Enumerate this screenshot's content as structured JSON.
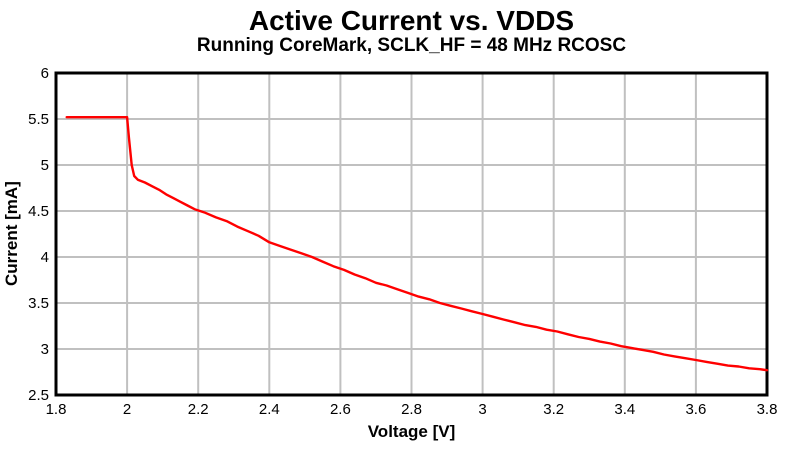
{
  "chart_data": {
    "type": "line",
    "title": "Active Current vs. VDDS",
    "subtitle": "Running CoreMark, SCLK_HF = 48 MHz RCOSC",
    "xlabel": "Voltage [V]",
    "ylabel": "Current [mA]",
    "xlim": [
      1.8,
      3.8
    ],
    "ylim": [
      2.5,
      6
    ],
    "grid": true,
    "legend": "none",
    "background_color": "#ffffff",
    "line_color": "#ff0000",
    "grid_color": "#c0c0c0",
    "border_color": "#000000",
    "text_color": "#000000",
    "xticks": [
      {
        "value": 1.8,
        "label": "1.8"
      },
      {
        "value": 2.0,
        "label": "2"
      },
      {
        "value": 2.2,
        "label": "2.2"
      },
      {
        "value": 2.4,
        "label": "2.4"
      },
      {
        "value": 2.6,
        "label": "2.6"
      },
      {
        "value": 2.8,
        "label": "2.8"
      },
      {
        "value": 3.0,
        "label": "3"
      },
      {
        "value": 3.2,
        "label": "3.2"
      },
      {
        "value": 3.4,
        "label": "3.4"
      },
      {
        "value": 3.6,
        "label": "3.6"
      },
      {
        "value": 3.8,
        "label": "3.8"
      }
    ],
    "yticks": [
      {
        "value": 2.5,
        "label": "2.5"
      },
      {
        "value": 3.0,
        "label": "3"
      },
      {
        "value": 3.5,
        "label": "3.5"
      },
      {
        "value": 4.0,
        "label": "4"
      },
      {
        "value": 4.5,
        "label": "4.5"
      },
      {
        "value": 5.0,
        "label": "5"
      },
      {
        "value": 5.5,
        "label": "5.5"
      },
      {
        "value": 6.0,
        "label": "6"
      }
    ],
    "series": [
      {
        "name": "Active current",
        "points": [
          [
            1.83,
            5.52
          ],
          [
            1.86,
            5.52
          ],
          [
            1.9,
            5.52
          ],
          [
            1.93,
            5.52
          ],
          [
            1.96,
            5.52
          ],
          [
            2.0,
            5.52
          ],
          [
            2.005,
            5.3
          ],
          [
            2.013,
            5.0
          ],
          [
            2.02,
            4.88
          ],
          [
            2.03,
            4.84
          ],
          [
            2.05,
            4.81
          ],
          [
            2.07,
            4.77
          ],
          [
            2.09,
            4.73
          ],
          [
            2.11,
            4.68
          ],
          [
            2.13,
            4.64
          ],
          [
            2.15,
            4.6
          ],
          [
            2.17,
            4.56
          ],
          [
            2.19,
            4.52
          ],
          [
            2.22,
            4.48
          ],
          [
            2.25,
            4.43
          ],
          [
            2.28,
            4.39
          ],
          [
            2.31,
            4.33
          ],
          [
            2.34,
            4.28
          ],
          [
            2.37,
            4.23
          ],
          [
            2.4,
            4.16
          ],
          [
            2.43,
            4.12
          ],
          [
            2.46,
            4.08
          ],
          [
            2.49,
            4.04
          ],
          [
            2.52,
            4.0
          ],
          [
            2.55,
            3.95
          ],
          [
            2.58,
            3.9
          ],
          [
            2.61,
            3.86
          ],
          [
            2.64,
            3.81
          ],
          [
            2.67,
            3.77
          ],
          [
            2.7,
            3.72
          ],
          [
            2.73,
            3.69
          ],
          [
            2.76,
            3.65
          ],
          [
            2.79,
            3.61
          ],
          [
            2.82,
            3.57
          ],
          [
            2.85,
            3.54
          ],
          [
            2.88,
            3.5
          ],
          [
            2.91,
            3.47
          ],
          [
            2.94,
            3.44
          ],
          [
            2.97,
            3.41
          ],
          [
            3.0,
            3.38
          ],
          [
            3.03,
            3.35
          ],
          [
            3.06,
            3.32
          ],
          [
            3.09,
            3.29
          ],
          [
            3.12,
            3.26
          ],
          [
            3.15,
            3.24
          ],
          [
            3.18,
            3.21
          ],
          [
            3.21,
            3.19
          ],
          [
            3.24,
            3.16
          ],
          [
            3.27,
            3.13
          ],
          [
            3.3,
            3.11
          ],
          [
            3.33,
            3.08
          ],
          [
            3.36,
            3.06
          ],
          [
            3.39,
            3.03
          ],
          [
            3.42,
            3.01
          ],
          [
            3.45,
            2.99
          ],
          [
            3.48,
            2.97
          ],
          [
            3.51,
            2.94
          ],
          [
            3.54,
            2.92
          ],
          [
            3.57,
            2.9
          ],
          [
            3.6,
            2.88
          ],
          [
            3.63,
            2.86
          ],
          [
            3.66,
            2.84
          ],
          [
            3.69,
            2.82
          ],
          [
            3.72,
            2.81
          ],
          [
            3.75,
            2.79
          ],
          [
            3.78,
            2.78
          ],
          [
            3.8,
            2.77
          ]
        ]
      }
    ]
  }
}
